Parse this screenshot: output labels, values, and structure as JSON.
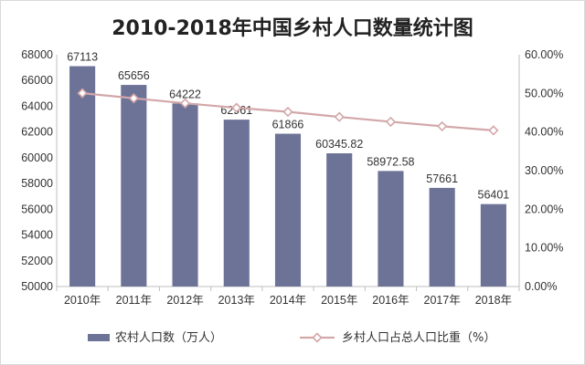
{
  "chart_data": {
    "type": "bar",
    "title": "2010-2018年中国乡村人口数量统计图",
    "categories": [
      "2010年",
      "2011年",
      "2012年",
      "2013年",
      "2014年",
      "2015年",
      "2016年",
      "2017年",
      "2018年"
    ],
    "series": [
      {
        "name": "农村人口数（万人）",
        "type": "bar",
        "axis": "left",
        "color": "#6d7397",
        "values": [
          67113,
          65656,
          64222,
          62961,
          61866,
          60345.82,
          58972.58,
          57661,
          56401
        ],
        "labels": [
          "67113",
          "65656",
          "64222",
          "62961",
          "61866",
          "60345.82",
          "58972.58",
          "57661",
          "56401"
        ]
      },
      {
        "name": "乡村人口占总人口比重（%）",
        "type": "line",
        "axis": "right",
        "color": "#d3a7a9",
        "values": [
          50.05,
          48.73,
          47.43,
          46.27,
          45.23,
          43.9,
          42.65,
          41.48,
          40.42
        ]
      }
    ],
    "y_left": {
      "ylim": [
        50000,
        68000
      ],
      "ticks": [
        "50000",
        "52000",
        "54000",
        "56000",
        "58000",
        "60000",
        "62000",
        "64000",
        "66000",
        "68000"
      ]
    },
    "y_right": {
      "ylim": [
        0,
        60
      ],
      "ticks": [
        "0.00%",
        "10.00%",
        "20.00%",
        "30.00%",
        "40.00%",
        "50.00%",
        "60.00%"
      ]
    },
    "legend_position": "bottom",
    "grid": false
  }
}
